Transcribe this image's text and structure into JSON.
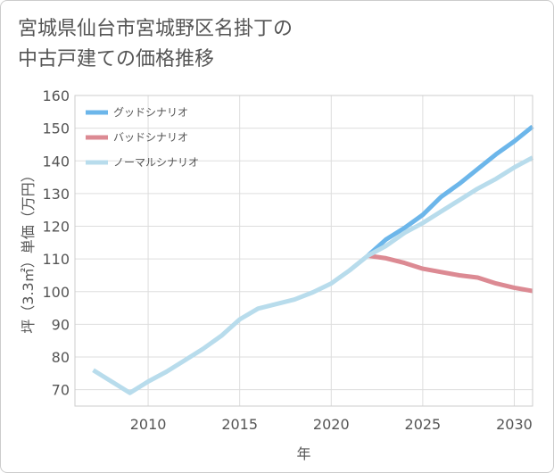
{
  "chart_data": {
    "type": "line",
    "title_line1": "宮城県仙台市宮城野区名掛丁の",
    "title_line2": "中古戸建ての価格推移",
    "xlabel": "年",
    "ylabel": "坪（3.3㎡）単価（万円）",
    "xlim": [
      2006,
      2031
    ],
    "ylim": [
      65,
      160
    ],
    "x_ticks": [
      2010,
      2015,
      2020,
      2025,
      2030
    ],
    "y_ticks": [
      70,
      80,
      90,
      100,
      110,
      120,
      130,
      140,
      150,
      160
    ],
    "grid": true,
    "legend_position": "top-left",
    "series": [
      {
        "name": "グッドシナリオ",
        "color": "#6cb6ea",
        "x": [
          2022,
          2023,
          2024,
          2025,
          2026,
          2027,
          2028,
          2029,
          2030,
          2031
        ],
        "values": [
          111,
          116,
          119.5,
          123.5,
          129,
          133,
          137.5,
          142,
          146,
          150.5
        ]
      },
      {
        "name": "バッドシナリオ",
        "color": "#dc8a93",
        "x": [
          2022,
          2023,
          2024,
          2025,
          2026,
          2027,
          2028,
          2029,
          2030,
          2031
        ],
        "values": [
          111,
          110.2,
          108.8,
          107,
          106,
          105,
          104.3,
          102.5,
          101.2,
          100.2
        ]
      },
      {
        "name": "ノーマルシナリオ",
        "color": "#b8dcec",
        "x": [
          2007,
          2008,
          2009,
          2010,
          2011,
          2012,
          2013,
          2014,
          2015,
          2016,
          2017,
          2018,
          2019,
          2020,
          2021,
          2022,
          2023,
          2024,
          2025,
          2026,
          2027,
          2028,
          2029,
          2030,
          2031
        ],
        "values": [
          76,
          72.5,
          69,
          72.5,
          75.5,
          79,
          82.5,
          86.5,
          91.5,
          94.8,
          96.2,
          97.6,
          99.8,
          102.5,
          106.5,
          111,
          114,
          118,
          121,
          124.5,
          128,
          131.5,
          134.5,
          138,
          141
        ]
      }
    ]
  }
}
